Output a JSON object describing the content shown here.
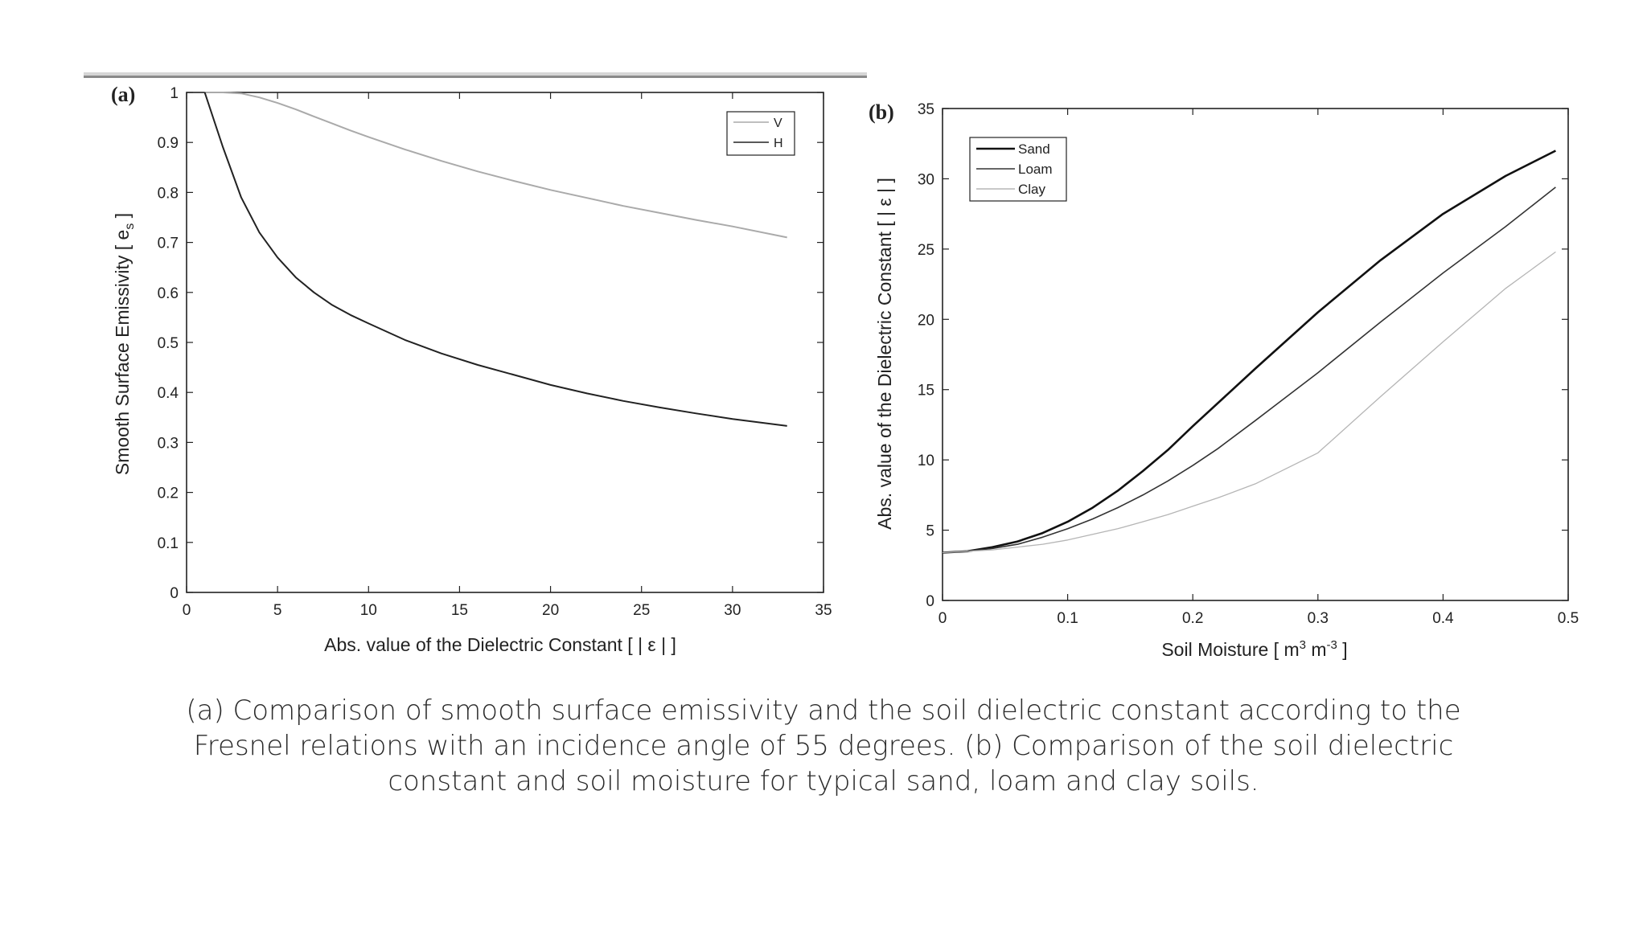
{
  "caption": "(a) Comparison of smooth surface emissivity and the soil dielectric constant according to the Fresnel relations with an incidence angle of 55 degrees. (b) Comparison of the soil dielectric constant and soil moisture for typical sand, loam and clay soils.",
  "chart_data": [
    {
      "type": "line",
      "panel_label": "(a)",
      "title": "",
      "xlabel": "Abs. value of the Dielectric Constant [ | ε | ]",
      "ylabel": "Smooth Surface Emissivity [ e_s ]",
      "ylabel_main": "Smooth Surface Emissivity [ e",
      "ylabel_sub": "s",
      "ylabel_end": " ]",
      "xlim": [
        0,
        35
      ],
      "ylim": [
        0,
        1
      ],
      "xticks": [
        "0",
        "5",
        "10",
        "15",
        "20",
        "25",
        "30",
        "35"
      ],
      "yticks": [
        "0",
        "0.1",
        "0.2",
        "0.3",
        "0.4",
        "0.5",
        "0.6",
        "0.7",
        "0.8",
        "0.9",
        "1"
      ],
      "grid": false,
      "legend_position": "top-right",
      "series": [
        {
          "name": "V",
          "color": "#aaaaaa",
          "x": [
            1,
            2,
            3,
            4,
            5,
            6,
            7,
            8,
            9,
            10,
            12,
            14,
            16,
            18,
            20,
            22,
            24,
            26,
            28,
            30,
            33
          ],
          "y": [
            1.0,
            1.0,
            0.998,
            0.99,
            0.979,
            0.966,
            0.952,
            0.938,
            0.924,
            0.911,
            0.886,
            0.863,
            0.842,
            0.823,
            0.805,
            0.789,
            0.773,
            0.759,
            0.745,
            0.732,
            0.71
          ]
        },
        {
          "name": "H",
          "color": "#222222",
          "x": [
            1,
            2,
            3,
            4,
            5,
            6,
            7,
            8,
            9,
            10,
            12,
            14,
            16,
            18,
            20,
            22,
            24,
            26,
            28,
            30,
            33
          ],
          "y": [
            1.0,
            0.89,
            0.79,
            0.72,
            0.67,
            0.63,
            0.6,
            0.575,
            0.555,
            0.538,
            0.505,
            0.478,
            0.455,
            0.435,
            0.415,
            0.398,
            0.383,
            0.37,
            0.358,
            0.347,
            0.333
          ]
        }
      ]
    },
    {
      "type": "line",
      "panel_label": "(b)",
      "title": "",
      "xlabel": "Soil Moisture [ m^3 m^-3 ]",
      "xlabel_a": "Soil Moisture [ m",
      "xlabel_sup1": "3",
      "xlabel_b": " m",
      "xlabel_sup2": "-3",
      "xlabel_c": " ]",
      "ylabel": "Abs. value of the Dielectric Constant [ | ε | ]",
      "xlim": [
        0,
        0.5
      ],
      "ylim": [
        0,
        35
      ],
      "xticks": [
        "0",
        "0.1",
        "0.2",
        "0.3",
        "0.4",
        "0.5"
      ],
      "yticks": [
        "0",
        "5",
        "10",
        "15",
        "20",
        "25",
        "30",
        "35"
      ],
      "grid": false,
      "legend_position": "top-left",
      "series": [
        {
          "name": "Sand",
          "color": "#111111",
          "width": 2.6,
          "x": [
            0,
            0.02,
            0.04,
            0.06,
            0.08,
            0.1,
            0.12,
            0.14,
            0.16,
            0.18,
            0.2,
            0.25,
            0.3,
            0.35,
            0.4,
            0.45,
            0.49
          ],
          "y": [
            3.4,
            3.5,
            3.8,
            4.2,
            4.8,
            5.6,
            6.6,
            7.8,
            9.2,
            10.7,
            12.4,
            16.5,
            20.5,
            24.2,
            27.5,
            30.2,
            32.0
          ]
        },
        {
          "name": "Loam",
          "color": "#333333",
          "width": 1.6,
          "x": [
            0,
            0.02,
            0.04,
            0.06,
            0.08,
            0.1,
            0.12,
            0.14,
            0.16,
            0.18,
            0.2,
            0.22,
            0.25,
            0.3,
            0.35,
            0.4,
            0.45,
            0.49
          ],
          "y": [
            3.4,
            3.5,
            3.7,
            4.0,
            4.5,
            5.1,
            5.8,
            6.6,
            7.5,
            8.5,
            9.6,
            10.8,
            12.8,
            16.2,
            19.8,
            23.3,
            26.6,
            29.4
          ]
        },
        {
          "name": "Clay",
          "color": "#b5b5b5",
          "width": 1.3,
          "x": [
            0,
            0.02,
            0.04,
            0.06,
            0.08,
            0.1,
            0.12,
            0.14,
            0.16,
            0.18,
            0.2,
            0.22,
            0.25,
            0.3,
            0.35,
            0.4,
            0.45,
            0.49
          ],
          "y": [
            3.4,
            3.5,
            3.6,
            3.8,
            4.0,
            4.3,
            4.7,
            5.1,
            5.6,
            6.1,
            6.7,
            7.3,
            8.3,
            10.5,
            14.5,
            18.4,
            22.2,
            24.8
          ]
        }
      ]
    }
  ]
}
